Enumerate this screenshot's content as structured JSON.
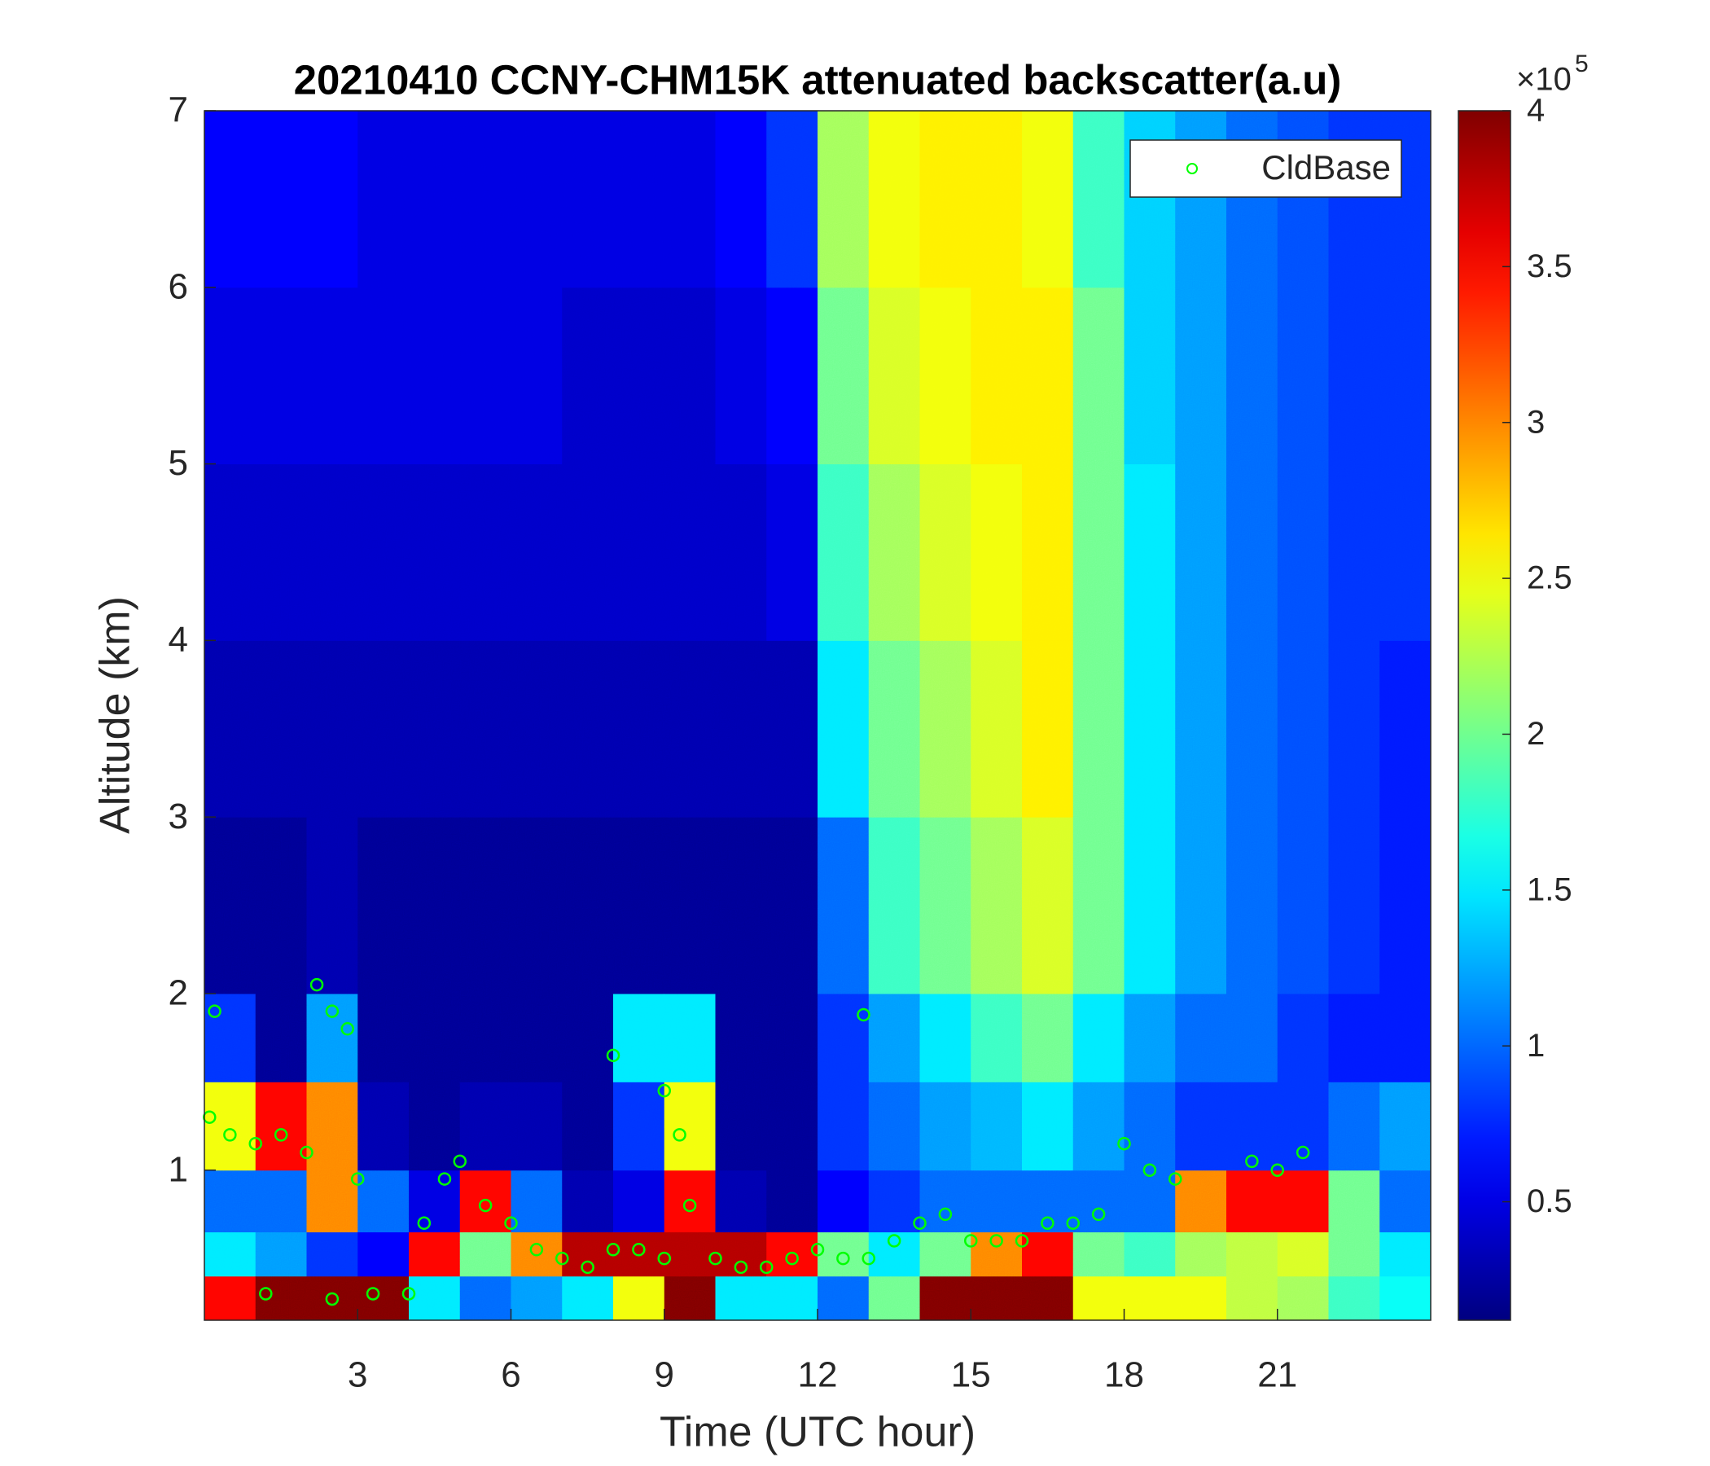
{
  "chart_data": {
    "type": "heatmap",
    "title": "20210410 CCNY-CHM15K attenuated backscatter(a.u)",
    "xlabel": "Time (UTC hour)",
    "ylabel": "Altitude (km)",
    "xlim": [
      0,
      24
    ],
    "xticks": [
      3,
      6,
      9,
      12,
      15,
      18,
      21
    ],
    "ylim": [
      0.15,
      7
    ],
    "yticks": [
      1,
      2,
      3,
      4,
      5,
      6,
      7
    ],
    "x_edges": [
      0,
      1,
      2,
      3,
      4,
      5,
      6,
      7,
      8,
      9,
      10,
      11,
      12,
      13,
      14,
      15,
      16,
      17,
      18,
      19,
      20,
      21,
      22,
      23,
      24
    ],
    "y_edges": [
      0.15,
      0.4,
      0.65,
      1.0,
      1.5,
      2,
      3,
      4,
      5,
      6,
      7
    ],
    "values": [
      [
        3.5,
        1.5,
        1.0,
        2.5,
        0.8,
        0.2,
        0.3,
        0.4,
        0.5,
        0.6
      ],
      [
        4,
        1.2,
        1.0,
        3.5,
        0.2,
        0.2,
        0.3,
        0.4,
        0.5,
        0.6
      ],
      [
        4,
        0.8,
        3.0,
        3.0,
        1.2,
        0.3,
        0.3,
        0.4,
        0.5,
        0.6
      ],
      [
        4,
        0.6,
        1.0,
        0.3,
        0.2,
        0.2,
        0.3,
        0.4,
        0.5,
        0.5
      ],
      [
        1.5,
        3.5,
        0.5,
        0.2,
        0.2,
        0.2,
        0.3,
        0.4,
        0.5,
        0.5
      ],
      [
        1.0,
        2.0,
        3.5,
        0.3,
        0.2,
        0.2,
        0.3,
        0.4,
        0.5,
        0.5
      ],
      [
        1.2,
        3.0,
        1.0,
        0.3,
        0.2,
        0.2,
        0.3,
        0.4,
        0.5,
        0.5
      ],
      [
        1.5,
        3.8,
        0.3,
        0.2,
        0.2,
        0.2,
        0.3,
        0.4,
        0.4,
        0.5
      ],
      [
        2.5,
        3.8,
        0.5,
        0.8,
        1.5,
        0.2,
        0.3,
        0.4,
        0.4,
        0.5
      ],
      [
        4,
        3.8,
        3.5,
        2.5,
        1.5,
        0.2,
        0.3,
        0.4,
        0.4,
        0.5
      ],
      [
        1.5,
        3.8,
        0.3,
        0.2,
        0.2,
        0.2,
        0.3,
        0.4,
        0.5,
        0.6
      ],
      [
        1.5,
        3.5,
        0.2,
        0.2,
        0.2,
        0.2,
        0.3,
        0.5,
        0.6,
        0.8
      ],
      [
        1.0,
        2.0,
        0.6,
        0.8,
        0.8,
        1.0,
        1.5,
        1.8,
        2.0,
        2.2
      ],
      [
        2.0,
        1.5,
        0.8,
        1.0,
        1.2,
        1.8,
        2.0,
        2.2,
        2.4,
        2.5
      ],
      [
        4,
        2.0,
        1.0,
        1.2,
        1.5,
        2.0,
        2.2,
        2.4,
        2.5,
        2.6
      ],
      [
        4,
        3.0,
        1.0,
        1.3,
        1.8,
        2.2,
        2.4,
        2.5,
        2.6,
        2.6
      ],
      [
        4,
        3.5,
        1.0,
        1.5,
        2.0,
        2.4,
        2.6,
        2.6,
        2.6,
        2.5
      ],
      [
        2.5,
        2.0,
        1.0,
        1.2,
        1.5,
        2.0,
        2.0,
        2.0,
        2.0,
        1.8
      ],
      [
        2.5,
        1.8,
        1.0,
        1.0,
        1.2,
        1.5,
        1.5,
        1.5,
        1.4,
        1.4
      ],
      [
        2.5,
        2.2,
        3.0,
        0.8,
        1.0,
        1.2,
        1.2,
        1.2,
        1.2,
        1.2
      ],
      [
        2.3,
        2.3,
        3.5,
        0.8,
        1.0,
        1.0,
        1.0,
        1.0,
        1.0,
        1.0
      ],
      [
        2.2,
        2.4,
        3.5,
        0.8,
        0.8,
        0.9,
        0.9,
        0.9,
        0.9,
        0.9
      ],
      [
        1.8,
        2.0,
        2.0,
        1.0,
        0.7,
        0.8,
        0.8,
        0.8,
        0.8,
        0.8
      ],
      [
        1.6,
        1.5,
        1.0,
        1.2,
        0.7,
        0.7,
        0.7,
        0.8,
        0.8,
        0.8
      ]
    ],
    "zlim": [
      0.12,
      4
    ],
    "zticks": [
      0.5,
      1,
      1.5,
      2,
      2.5,
      3,
      3.5,
      4
    ],
    "colorbar_multiplier": {
      "base": "×10",
      "exponent": "5"
    },
    "colormap": "jet",
    "overlay": {
      "type": "scatter",
      "name": "CldBase",
      "color": "#00ff00",
      "x": [
        0.1,
        0.2,
        0.5,
        1,
        1.5,
        2,
        2.2,
        2.5,
        2.8,
        3,
        1.2,
        2.5,
        3.3,
        4,
        4.3,
        4.7,
        5,
        5.5,
        6,
        6.5,
        7,
        7.5,
        8,
        8,
        8.5,
        9,
        9,
        9.3,
        9.5,
        10,
        10.5,
        11,
        11.5,
        12,
        12.5,
        12.9,
        13,
        13.5,
        14,
        14.5,
        15,
        15.5,
        16,
        16.5,
        17,
        17.5,
        18,
        18.5,
        19,
        20.5,
        21,
        21.5
      ],
      "y": [
        1.3,
        1.9,
        1.2,
        1.15,
        1.2,
        1.1,
        2.05,
        1.9,
        1.8,
        0.95,
        0.3,
        0.27,
        0.3,
        0.3,
        0.7,
        0.95,
        1.05,
        0.8,
        0.7,
        0.55,
        0.5,
        0.45,
        1.65,
        0.55,
        0.55,
        1.45,
        0.5,
        1.2,
        0.8,
        0.5,
        0.45,
        0.45,
        0.5,
        0.55,
        0.5,
        1.88,
        0.5,
        0.6,
        0.7,
        0.75,
        0.6,
        0.6,
        0.6,
        0.7,
        0.7,
        0.75,
        1.15,
        1.0,
        0.95,
        1.05,
        1.0,
        1.1
      ]
    },
    "legend": "upper right"
  }
}
